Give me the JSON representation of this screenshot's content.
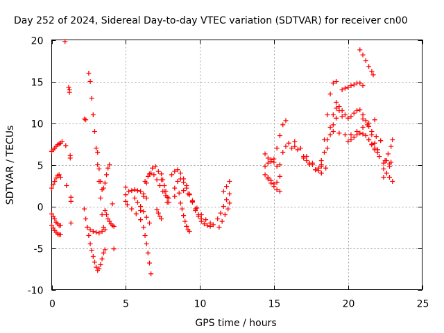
{
  "chart_data": {
    "type": "scatter",
    "title": "Day 252 of 2024, Sidereal Day-to-day VTEC variation (SDTVAR) for receiver cn00",
    "xlabel": "GPS time / hours",
    "ylabel": "SDTVAR / TECUs",
    "xlim": [
      0,
      25
    ],
    "ylim": [
      -10,
      20
    ],
    "xticks": [
      0,
      5,
      10,
      15,
      20,
      25
    ],
    "yticks": [
      -10,
      -5,
      0,
      5,
      10,
      15,
      20
    ],
    "xtick_labels": [
      "0",
      "5",
      "10",
      "15",
      "20",
      "25"
    ],
    "ytick_labels": [
      "-10",
      "-5",
      "0",
      "5",
      "10",
      "15",
      "20"
    ],
    "grid": true,
    "marker": "plus",
    "color": "#ff0000",
    "series": [
      {
        "name": "s1",
        "x": [
          0.0,
          0.1,
          0.2,
          0.3,
          0.4,
          0.5,
          0.6,
          0.7
        ],
        "y": [
          6.6,
          6.8,
          7.0,
          7.2,
          7.4,
          7.5,
          7.6,
          7.8
        ]
      },
      {
        "name": "s2",
        "x": [
          0.0,
          0.1,
          0.2,
          0.3,
          0.4,
          0.5,
          0.6
        ],
        "y": [
          2.2,
          2.6,
          3.0,
          3.4,
          3.7,
          3.8,
          3.5
        ]
      },
      {
        "name": "s3",
        "x": [
          0.0,
          0.1,
          0.2,
          0.3,
          0.4,
          0.5,
          0.6
        ],
        "y": [
          -0.9,
          -1.2,
          -1.5,
          -1.9,
          -2.1,
          -2.3,
          -2.3
        ]
      },
      {
        "name": "s4",
        "x": [
          0.0,
          0.1,
          0.2,
          0.3,
          0.4,
          0.5,
          0.6
        ],
        "y": [
          -2.3,
          -2.6,
          -2.9,
          -3.1,
          -3.3,
          -3.4,
          -3.4
        ]
      },
      {
        "name": "s5",
        "x": [
          0.9,
          0.95,
          1.0,
          1.15,
          1.2,
          1.2,
          1.25,
          1.25,
          1.3,
          1.3,
          1.3
        ],
        "y": [
          19.8,
          7.3,
          2.5,
          14.3,
          14.0,
          13.7,
          6.1,
          5.8,
          1.1,
          0.6,
          -2.0
        ]
      },
      {
        "name": "s6",
        "x": [
          2.2,
          2.3,
          2.2,
          2.3,
          2.4,
          2.5,
          2.6,
          2.7,
          2.8,
          2.9,
          3.0,
          3.1,
          3.2,
          3.3,
          3.4,
          3.5,
          3.6
        ],
        "y": [
          10.5,
          10.4,
          -0.3,
          -1.5,
          -2.5,
          -3.5,
          -4.5,
          -5.3,
          -6.0,
          -6.7,
          -7.3,
          -7.7,
          -7.5,
          -7.0,
          -6.3,
          -5.6,
          -5.2
        ]
      },
      {
        "name": "s7",
        "x": [
          2.5,
          2.6,
          2.7,
          2.8,
          2.9,
          3.0,
          3.1,
          3.2,
          3.3,
          3.4,
          3.5
        ],
        "y": [
          16.0,
          15.0,
          13.0,
          11.0,
          9.0,
          7.0,
          5.0,
          3.0,
          1.0,
          -1.0,
          -2.5
        ]
      },
      {
        "name": "s8",
        "x": [
          2.4,
          2.6,
          2.8,
          3.0,
          3.2,
          3.4,
          3.6
        ],
        "y": [
          -2.5,
          -2.8,
          -3.0,
          -3.1,
          -3.2,
          -3.0,
          -2.8
        ]
      },
      {
        "name": "s9",
        "x": [
          3.1,
          3.2,
          3.3,
          3.4,
          3.5,
          3.6,
          3.7,
          3.8,
          3.9
        ],
        "y": [
          6.5,
          4.5,
          3.0,
          2.0,
          2.2,
          2.8,
          3.8,
          4.6,
          5.0
        ]
      },
      {
        "name": "s10",
        "x": [
          3.6,
          3.7,
          3.8,
          3.9,
          4.0,
          4.1,
          4.2
        ],
        "y": [
          -0.5,
          -1.0,
          -1.5,
          -1.8,
          -2.1,
          -2.3,
          -2.4
        ]
      },
      {
        "name": "s11",
        "x": [
          4.1,
          4.2
        ],
        "y": [
          0.3,
          -5.1
        ]
      },
      {
        "name": "s12",
        "x": [
          5.0,
          5.0,
          5.0
        ],
        "y": [
          2.3,
          1.4,
          0.6
        ]
      },
      {
        "name": "s13",
        "x": [
          5.2,
          5.4,
          5.6,
          5.8,
          6.0,
          6.2,
          6.4
        ],
        "y": [
          1.8,
          1.9,
          2.0,
          1.9,
          1.8,
          1.5,
          1.0
        ]
      },
      {
        "name": "s14",
        "x": [
          5.1,
          5.4,
          5.7,
          6.0,
          6.2,
          6.3,
          6.4,
          6.5,
          6.6,
          6.7
        ],
        "y": [
          0.2,
          -0.3,
          -0.9,
          -1.6,
          -2.5,
          -3.5,
          -4.5,
          -5.6,
          -6.8,
          -8.1
        ]
      },
      {
        "name": "s15",
        "x": [
          5.6,
          5.8,
          6.0,
          6.2,
          6.4,
          6.6
        ],
        "y": [
          1.0,
          0.5,
          0.0,
          -0.6,
          -1.3,
          -2.0
        ]
      },
      {
        "name": "s16",
        "x": [
          6.0,
          6.2,
          6.4,
          6.6,
          6.8,
          7.0,
          7.2,
          7.4,
          7.6,
          7.8
        ],
        "y": [
          -0.5,
          1.2,
          2.8,
          3.9,
          4.6,
          4.8,
          4.2,
          3.2,
          1.8,
          0.5
        ]
      },
      {
        "name": "s17",
        "x": [
          6.3,
          6.5,
          6.7,
          6.9,
          7.1,
          7.3,
          7.5,
          7.7,
          7.9
        ],
        "y": [
          3.0,
          3.6,
          4.0,
          3.8,
          3.2,
          2.5,
          1.8,
          1.3,
          1.0
        ]
      },
      {
        "name": "s18",
        "x": [
          7.1,
          7.2,
          7.3,
          7.4
        ],
        "y": [
          -0.4,
          -0.8,
          -1.2,
          -1.5
        ]
      },
      {
        "name": "s19",
        "x": [
          7.4,
          7.5,
          7.6,
          7.7,
          7.8,
          7.9
        ],
        "y": [
          3.9,
          3.2,
          2.5,
          1.8,
          1.1,
          0.5
        ]
      },
      {
        "name": "s20",
        "x": [
          8.1,
          8.3,
          8.5,
          8.7,
          8.9,
          9.1,
          9.3,
          9.5,
          9.7,
          9.9,
          10.1,
          10.3,
          10.5,
          10.7,
          10.9
        ],
        "y": [
          3.8,
          4.2,
          4.4,
          4.0,
          3.3,
          2.5,
          1.5,
          0.5,
          -0.5,
          -1.2,
          -1.8,
          -2.1,
          -2.3,
          -2.4,
          -2.2
        ]
      },
      {
        "name": "s21",
        "x": [
          8.3,
          8.5,
          8.7,
          8.9,
          9.1,
          9.3,
          9.5,
          9.7,
          9.9,
          10.1
        ],
        "y": [
          2.2,
          3.0,
          3.3,
          2.9,
          2.2,
          1.4,
          0.6,
          -0.3,
          -1.0,
          -1.5
        ]
      },
      {
        "name": "s22",
        "x": [
          8.3,
          8.6,
          8.9,
          9.2,
          9.5,
          9.8,
          10.1,
          10.4,
          10.7
        ],
        "y": [
          1.2,
          1.6,
          1.9,
          1.5,
          0.7,
          -0.2,
          -1.0,
          -1.6,
          -2.0
        ]
      },
      {
        "name": "s23",
        "x": [
          8.7,
          8.8,
          8.9,
          9.0,
          9.1,
          9.2,
          9.3
        ],
        "y": [
          0.4,
          -0.3,
          -1.1,
          -1.8,
          -2.4,
          -2.8,
          -3.0
        ]
      },
      {
        "name": "s24",
        "x": [
          11.2,
          11.4,
          11.6,
          11.8,
          12.0
        ],
        "y": [
          -1.5,
          -0.8,
          0.0,
          0.8,
          1.5
        ]
      },
      {
        "name": "s25",
        "x": [
          11.3,
          11.5,
          11.7,
          11.9,
          12.0
        ],
        "y": [
          -2.5,
          -1.8,
          -1.0,
          -0.3,
          0.4
        ]
      },
      {
        "name": "s26",
        "x": [
          11.6,
          11.8,
          12.0
        ],
        "y": [
          1.8,
          2.4,
          3.0
        ]
      },
      {
        "name": "s27",
        "x": [
          14.4,
          14.6,
          14.8,
          15.0,
          15.2,
          15.4,
          15.6,
          15.8
        ],
        "y": [
          6.3,
          5.8,
          5.4,
          5.7,
          7.0,
          8.5,
          9.8,
          10.3
        ]
      },
      {
        "name": "s28",
        "x": [
          14.4,
          14.6,
          14.8,
          15.0,
          15.2,
          15.4
        ],
        "y": [
          4.8,
          5.2,
          5.6,
          5.3,
          4.8,
          5.0
        ]
      },
      {
        "name": "s29",
        "x": [
          14.4,
          14.6,
          14.8,
          15.0,
          15.2,
          15.4
        ],
        "y": [
          3.8,
          3.5,
          3.1,
          2.7,
          2.9,
          3.6
        ]
      },
      {
        "name": "s30",
        "x": [
          14.6,
          14.8,
          15.0,
          15.2,
          15.4
        ],
        "y": [
          3.3,
          2.8,
          2.4,
          2.0,
          1.8
        ]
      },
      {
        "name": "s31",
        "x": [
          15.6,
          15.8,
          16.0,
          16.2,
          16.4
        ],
        "y": [
          6.5,
          7.2,
          7.6,
          7.0,
          7.2
        ]
      },
      {
        "name": "s32",
        "x": [
          16.4,
          16.8,
          17.2,
          17.6,
          18.0,
          18.2,
          18.4,
          18.6,
          18.8,
          19.0,
          19.2
        ],
        "y": [
          7.8,
          7.0,
          6.0,
          5.2,
          4.6,
          5.5,
          8.0,
          11.0,
          13.5,
          14.8,
          15.0
        ]
      },
      {
        "name": "s33",
        "x": [
          16.6,
          17.0,
          17.4,
          17.8,
          18.2,
          18.5
        ],
        "y": [
          6.8,
          6.0,
          5.2,
          4.4,
          4.0,
          4.6
        ]
      },
      {
        "name": "s34",
        "x": [
          17.0,
          17.4,
          17.8,
          18.2,
          18.6,
          18.8,
          19.0,
          19.2
        ],
        "y": [
          5.8,
          5.0,
          4.4,
          4.8,
          7.0,
          8.6,
          9.8,
          10.6
        ]
      },
      {
        "name": "s35",
        "x": [
          17.2,
          17.6,
          18.0,
          18.2
        ],
        "y": [
          5.5,
          5.0,
          4.3,
          4.0
        ]
      },
      {
        "name": "s36",
        "x": [
          18.2,
          18.4,
          18.6,
          18.8,
          19.0,
          19.2,
          19.4,
          19.6
        ],
        "y": [
          5.0,
          6.5,
          8.0,
          9.5,
          11.0,
          11.8,
          11.5,
          10.8
        ]
      },
      {
        "name": "s37",
        "x": [
          19.6,
          19.8,
          20.0,
          20.2,
          20.4,
          20.6,
          20.8,
          21.0
        ],
        "y": [
          14.0,
          14.2,
          14.3,
          14.5,
          14.6,
          14.8,
          14.8,
          14.5
        ]
      },
      {
        "name": "s38",
        "x": [
          19.2,
          19.4,
          19.6,
          19.8,
          20.0,
          20.2,
          20.4,
          20.6,
          20.8
        ],
        "y": [
          12.5,
          12.0,
          11.5,
          11.0,
          10.6,
          10.8,
          11.2,
          11.5,
          11.6
        ]
      },
      {
        "name": "s39",
        "x": [
          19.0,
          19.4,
          19.8,
          20.2,
          20.6,
          21.0,
          21.4,
          21.8
        ],
        "y": [
          9.0,
          8.8,
          8.6,
          8.6,
          9.0,
          9.5,
          10.0,
          10.4
        ]
      },
      {
        "name": "s40",
        "x": [
          20.0,
          20.2,
          20.4,
          20.6,
          20.8,
          21.0,
          21.2,
          21.4,
          21.6,
          21.8
        ],
        "y": [
          7.8,
          8.0,
          8.3,
          8.6,
          8.8,
          8.7,
          8.5,
          8.0,
          7.4,
          6.8
        ]
      },
      {
        "name": "s41",
        "x": [
          20.8,
          21.0,
          21.2,
          21.4,
          21.6,
          21.7
        ],
        "y": [
          18.8,
          18.2,
          17.5,
          16.8,
          16.2,
          15.8
        ]
      },
      {
        "name": "s42",
        "x": [
          21.0,
          21.2,
          21.4,
          21.6,
          21.8,
          22.0
        ],
        "y": [
          11.0,
          10.3,
          9.6,
          8.6,
          7.6,
          6.8
        ]
      },
      {
        "name": "s43",
        "x": [
          21.4,
          21.6,
          21.8,
          22.0,
          22.1
        ],
        "y": [
          8.0,
          7.5,
          7.0,
          6.5,
          6.0
        ]
      },
      {
        "name": "s44",
        "x": [
          21.0,
          21.3,
          21.6,
          21.9,
          22.2
        ],
        "y": [
          10.5,
          9.8,
          9.0,
          8.4,
          7.9
        ]
      },
      {
        "name": "s45",
        "x": [
          22.4,
          22.6,
          22.8
        ],
        "y": [
          5.2,
          5.5,
          5.1
        ]
      },
      {
        "name": "s46",
        "x": [
          22.4,
          22.6,
          22.8,
          23.0
        ],
        "y": [
          4.5,
          4.0,
          3.5,
          3.0
        ]
      },
      {
        "name": "s47",
        "x": [
          22.5,
          22.7,
          22.9,
          23.0
        ],
        "y": [
          5.5,
          6.3,
          7.2,
          8.0
        ]
      },
      {
        "name": "s48",
        "x": [
          22.4,
          22.6,
          22.8,
          22.9
        ],
        "y": [
          3.5,
          4.0,
          4.8,
          5.3
        ]
      }
    ]
  }
}
